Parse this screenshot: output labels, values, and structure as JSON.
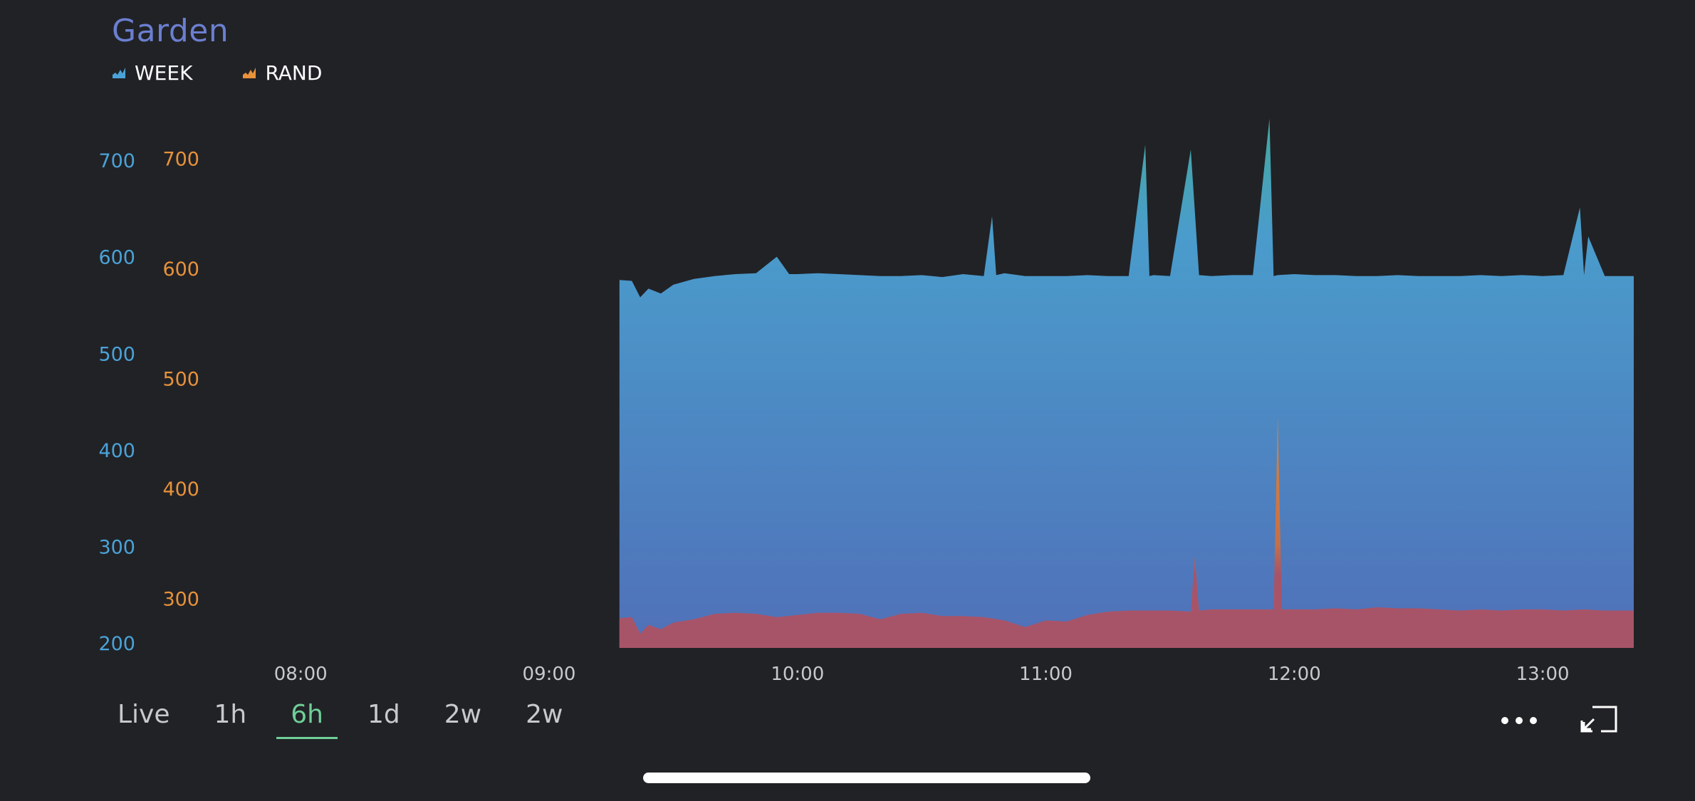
{
  "header": {
    "title": "Garden",
    "legend": [
      {
        "label": "WEEK",
        "icon": "area-chart-icon",
        "color": "#4aa3d8"
      },
      {
        "label": "RAND",
        "icon": "area-chart-icon",
        "color": "#e8923a"
      }
    ]
  },
  "tabs": [
    {
      "label": "Live",
      "active": false
    },
    {
      "label": "1h",
      "active": false
    },
    {
      "label": "6h",
      "active": true
    },
    {
      "label": "1d",
      "active": false
    },
    {
      "label": "2w",
      "active": false
    },
    {
      "label": "2w",
      "active": false
    }
  ],
  "controls": {
    "menu_icon": "more-dots-icon",
    "fullscreen_icon": "exit-fullscreen-icon"
  },
  "colors": {
    "background": "#212226",
    "title": "#6b7fd0",
    "left_axis": "#4aa3d8",
    "right_axis": "#e8923a",
    "active_tab": "#6fcf97",
    "week_fill_top": "#44a89f",
    "week_fill_mid": "#4a9ccc",
    "week_fill_bottom": "#5070b8",
    "rand_fill": "#a85468",
    "rand_spike": "#d9853a"
  },
  "chart_data": {
    "type": "area",
    "title": "Garden",
    "x_ticks": [
      "08:00",
      "09:00",
      "10:00",
      "11:00",
      "12:00",
      "13:00"
    ],
    "x_range": [
      "07:45",
      "13:22"
    ],
    "y_left": {
      "ticks": [
        200,
        300,
        400,
        500,
        600,
        700
      ],
      "range": [
        195,
        770
      ]
    },
    "y_right": {
      "ticks": [
        300,
        400,
        500,
        600,
        700
      ],
      "range": [
        255,
        760
      ]
    },
    "series": [
      {
        "name": "WEEK",
        "axis": "left",
        "x": [
          "09:17",
          "09:20",
          "09:22",
          "09:24",
          "09:27",
          "09:30",
          "09:35",
          "09:40",
          "09:45",
          "09:50",
          "09:55",
          "09:58",
          "10:00",
          "10:05",
          "10:10",
          "10:15",
          "10:20",
          "10:25",
          "10:30",
          "10:35",
          "10:40",
          "10:45",
          "10:47",
          "10:48",
          "10:50",
          "10:55",
          "11:00",
          "11:05",
          "11:10",
          "11:15",
          "11:20",
          "11:24",
          "11:25",
          "11:26",
          "11:30",
          "11:35",
          "11:37",
          "11:40",
          "11:45",
          "11:50",
          "11:54",
          "11:55",
          "11:56",
          "12:00",
          "12:05",
          "12:10",
          "12:15",
          "12:20",
          "12:25",
          "12:30",
          "12:35",
          "12:40",
          "12:45",
          "12:50",
          "12:55",
          "13:00",
          "13:05",
          "13:09",
          "13:10",
          "13:11",
          "13:15",
          "13:20",
          "13:22"
        ],
        "y": [
          576,
          575,
          558,
          567,
          562,
          571,
          577,
          580,
          582,
          583,
          600,
          582,
          582,
          583,
          582,
          581,
          580,
          580,
          581,
          579,
          582,
          580,
          642,
          581,
          583,
          580,
          580,
          580,
          581,
          580,
          580,
          716,
          580,
          581,
          580,
          711,
          581,
          580,
          581,
          581,
          743,
          580,
          581,
          582,
          581,
          581,
          580,
          580,
          581,
          580,
          580,
          580,
          581,
          580,
          581,
          580,
          581,
          651,
          581,
          621,
          580,
          580,
          580
        ]
      },
      {
        "name": "RAND",
        "axis": "right",
        "x": [
          "09:17",
          "09:20",
          "09:22",
          "09:24",
          "09:27",
          "09:30",
          "09:35",
          "09:40",
          "09:45",
          "09:50",
          "09:55",
          "10:00",
          "10:05",
          "10:10",
          "10:15",
          "10:20",
          "10:25",
          "10:30",
          "10:35",
          "10:40",
          "10:45",
          "10:50",
          "10:55",
          "11:00",
          "11:05",
          "11:10",
          "11:15",
          "11:20",
          "11:25",
          "11:30",
          "11:35",
          "11:36",
          "11:37",
          "11:40",
          "11:45",
          "11:50",
          "11:55",
          "11:56",
          "11:57",
          "12:00",
          "12:05",
          "12:10",
          "12:15",
          "12:20",
          "12:25",
          "12:30",
          "12:35",
          "12:40",
          "12:45",
          "12:50",
          "12:55",
          "13:00",
          "13:05",
          "13:10",
          "13:15",
          "13:20",
          "13:22"
        ],
        "y": [
          282,
          283,
          268,
          276,
          272,
          278,
          281,
          286,
          287,
          286,
          283,
          285,
          287,
          287,
          286,
          281,
          286,
          287,
          284,
          284,
          283,
          280,
          274,
          280,
          279,
          285,
          288,
          289,
          289,
          289,
          288,
          338,
          289,
          290,
          290,
          290,
          290,
          465,
          290,
          290,
          290,
          291,
          290,
          292,
          291,
          291,
          290,
          289,
          290,
          289,
          290,
          290,
          289,
          290,
          289,
          289,
          289
        ]
      }
    ]
  }
}
